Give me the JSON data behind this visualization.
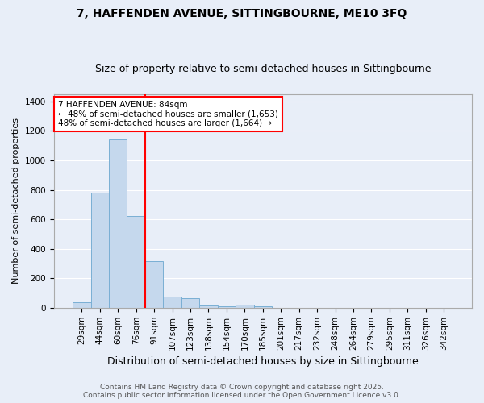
{
  "title": "7, HAFFENDEN AVENUE, SITTINGBOURNE, ME10 3FQ",
  "subtitle": "Size of property relative to semi-detached houses in Sittingbourne",
  "xlabel": "Distribution of semi-detached houses by size in Sittingbourne",
  "ylabel": "Number of semi-detached properties",
  "categories": [
    "29sqm",
    "44sqm",
    "60sqm",
    "76sqm",
    "91sqm",
    "107sqm",
    "123sqm",
    "138sqm",
    "154sqm",
    "170sqm",
    "185sqm",
    "201sqm",
    "217sqm",
    "232sqm",
    "248sqm",
    "264sqm",
    "279sqm",
    "295sqm",
    "311sqm",
    "326sqm",
    "342sqm"
  ],
  "values": [
    35,
    780,
    1145,
    620,
    315,
    75,
    65,
    15,
    10,
    20,
    10,
    0,
    0,
    0,
    0,
    0,
    0,
    0,
    0,
    0,
    0
  ],
  "bar_color": "#c5d8ed",
  "bar_edge_color": "#7aafd4",
  "red_line_x": 3.5,
  "annotation_text": "7 HAFFENDEN AVENUE: 84sqm\n← 48% of semi-detached houses are smaller (1,653)\n48% of semi-detached houses are larger (1,664) →",
  "footer": "Contains HM Land Registry data © Crown copyright and database right 2025.\nContains public sector information licensed under the Open Government Licence v3.0.",
  "ylim": [
    0,
    1450
  ],
  "background_color": "#e8eef8",
  "plot_background": "#e8eef8",
  "title_fontsize": 10,
  "subtitle_fontsize": 9,
  "ylabel_fontsize": 8,
  "xlabel_fontsize": 9,
  "tick_fontsize": 7.5,
  "footer_fontsize": 6.5,
  "annot_fontsize": 7.5
}
